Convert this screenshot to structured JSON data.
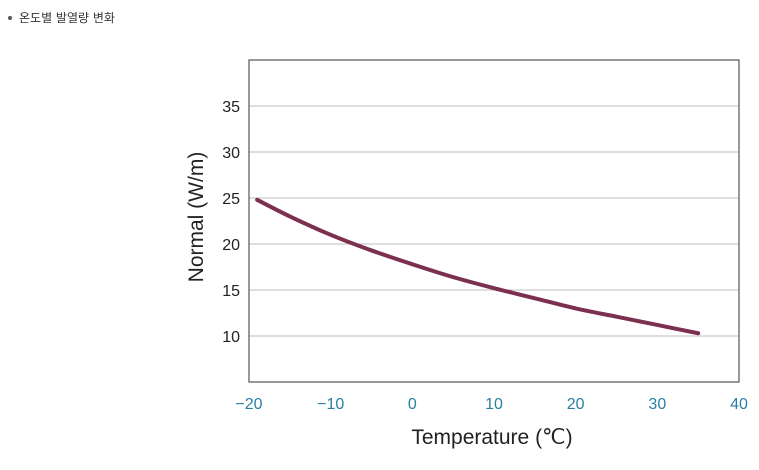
{
  "caption": {
    "text": "온도별 발열량 변화"
  },
  "chart_data": {
    "type": "line",
    "title": "",
    "xlabel": "Temperature (℃)",
    "ylabel": "Normal (W/m)",
    "xlim": [
      -20,
      40
    ],
    "ylim": [
      5,
      40
    ],
    "x_ticks": [
      -20,
      -10,
      0,
      10,
      20,
      30,
      40
    ],
    "x_tick_labels": [
      "−20",
      "−10",
      "0",
      "10",
      "20",
      "30",
      "40"
    ],
    "y_ticks": [
      10,
      15,
      20,
      25,
      30,
      35
    ],
    "y_tick_labels": [
      "10",
      "15",
      "20",
      "25",
      "30",
      "35"
    ],
    "grid": "horizontal",
    "series": [
      {
        "name": "Normal",
        "color": "#7b3050",
        "x": [
          -19,
          -15,
          -10,
          -5,
          0,
          5,
          10,
          15,
          20,
          25,
          30,
          35
        ],
        "y": [
          24.8,
          23.0,
          21.0,
          19.3,
          17.8,
          16.4,
          15.2,
          14.1,
          13.0,
          12.1,
          11.2,
          10.3
        ]
      }
    ]
  }
}
